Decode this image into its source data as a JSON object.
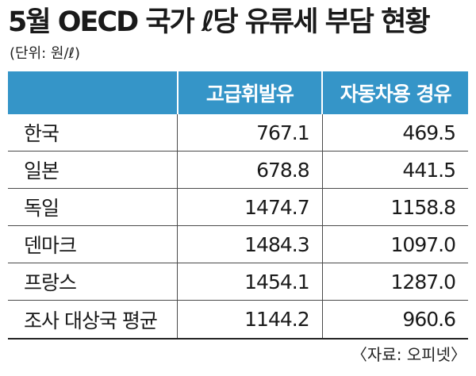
{
  "title": "5월 OECD 국가 ℓ당 유류세 부담 현황",
  "unit": "(단위: 원/ℓ)",
  "source": "〈자료: 오피넷〉",
  "colors": {
    "header_bg": "#3595c8",
    "header_text": "#ffffff"
  },
  "chart_data": {
    "type": "table",
    "columns": [
      "",
      "고급휘발유",
      "자동차용 경유"
    ],
    "rows": [
      {
        "label": "한국",
        "premium": "767.1",
        "diesel": "469.5"
      },
      {
        "label": "일본",
        "premium": "678.8",
        "diesel": "441.5"
      },
      {
        "label": "독일",
        "premium": "1474.7",
        "diesel": "1158.8"
      },
      {
        "label": "덴마크",
        "premium": "1484.3",
        "diesel": "1097.0"
      },
      {
        "label": "프랑스",
        "premium": "1454.1",
        "diesel": "1287.0"
      },
      {
        "label": "조사 대상국 평균",
        "premium": "1144.2",
        "diesel": "960.6"
      }
    ]
  }
}
